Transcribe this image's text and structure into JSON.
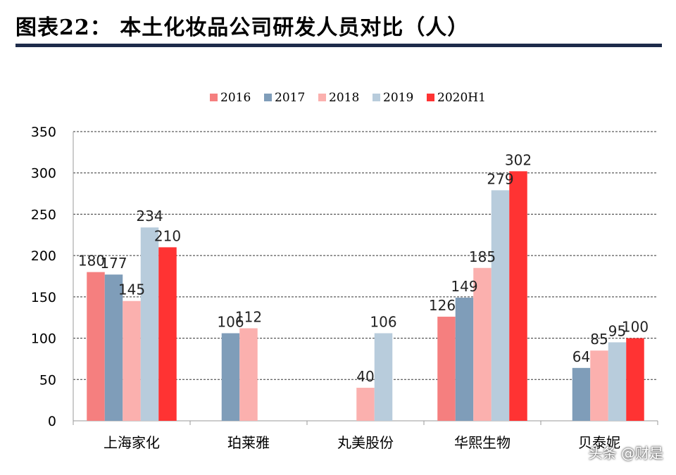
{
  "header": {
    "title": "图表22：  本土化妆品公司研发人员对比（人）"
  },
  "watermark": "头条 @财是",
  "colors": {
    "2016": "#f57f7f",
    "2017": "#7f9db9",
    "2018": "#fbb0ae",
    "2019": "#b8ccdc",
    "2020H1": "#ff3333",
    "title_rule": "#1d2b4a"
  },
  "chart_data": {
    "type": "bar",
    "title": "",
    "xlabel": "",
    "ylabel": "",
    "ylim": [
      0,
      350
    ],
    "yticks": [
      0,
      50,
      100,
      150,
      200,
      250,
      300,
      350
    ],
    "grid": true,
    "legend_position": "top",
    "categories": [
      "上海家化",
      "珀莱雅",
      "丸美股份",
      "华熙生物",
      "贝泰妮"
    ],
    "series": [
      {
        "name": "2016",
        "values": [
          180,
          null,
          null,
          126,
          null
        ]
      },
      {
        "name": "2017",
        "values": [
          177,
          106,
          null,
          149,
          64
        ]
      },
      {
        "name": "2018",
        "values": [
          145,
          112,
          40,
          185,
          85
        ]
      },
      {
        "name": "2019",
        "values": [
          234,
          null,
          106,
          279,
          95
        ]
      },
      {
        "name": "2020H1",
        "values": [
          210,
          null,
          null,
          302,
          100
        ]
      }
    ]
  }
}
